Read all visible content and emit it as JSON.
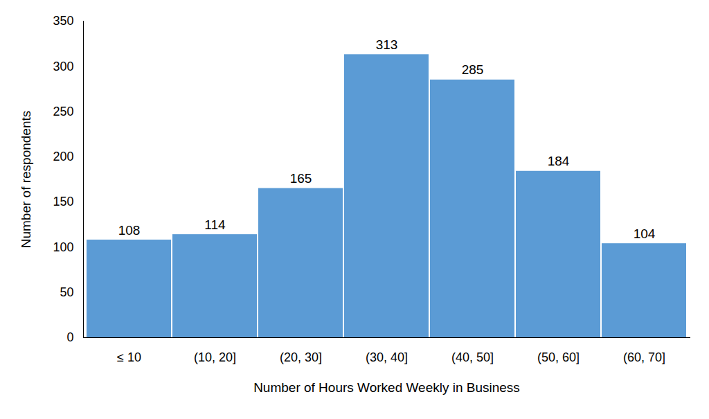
{
  "chart_data": {
    "type": "bar",
    "xlabel": "Number of Hours Worked Weekly in Business",
    "ylabel": "Number of respondents",
    "categories": [
      "≤ 10",
      "(10, 20]",
      "(20, 30]",
      "(30, 40]",
      "(40, 50]",
      "(50, 60]",
      "(60, 70]"
    ],
    "values": [
      108,
      114,
      165,
      313,
      285,
      184,
      104
    ],
    "color": "#5b9bd5",
    "ylim": [
      0,
      350
    ],
    "yticks": [
      0,
      50,
      100,
      150,
      200,
      250,
      300,
      350
    ],
    "grid": false,
    "data_labels": true
  }
}
